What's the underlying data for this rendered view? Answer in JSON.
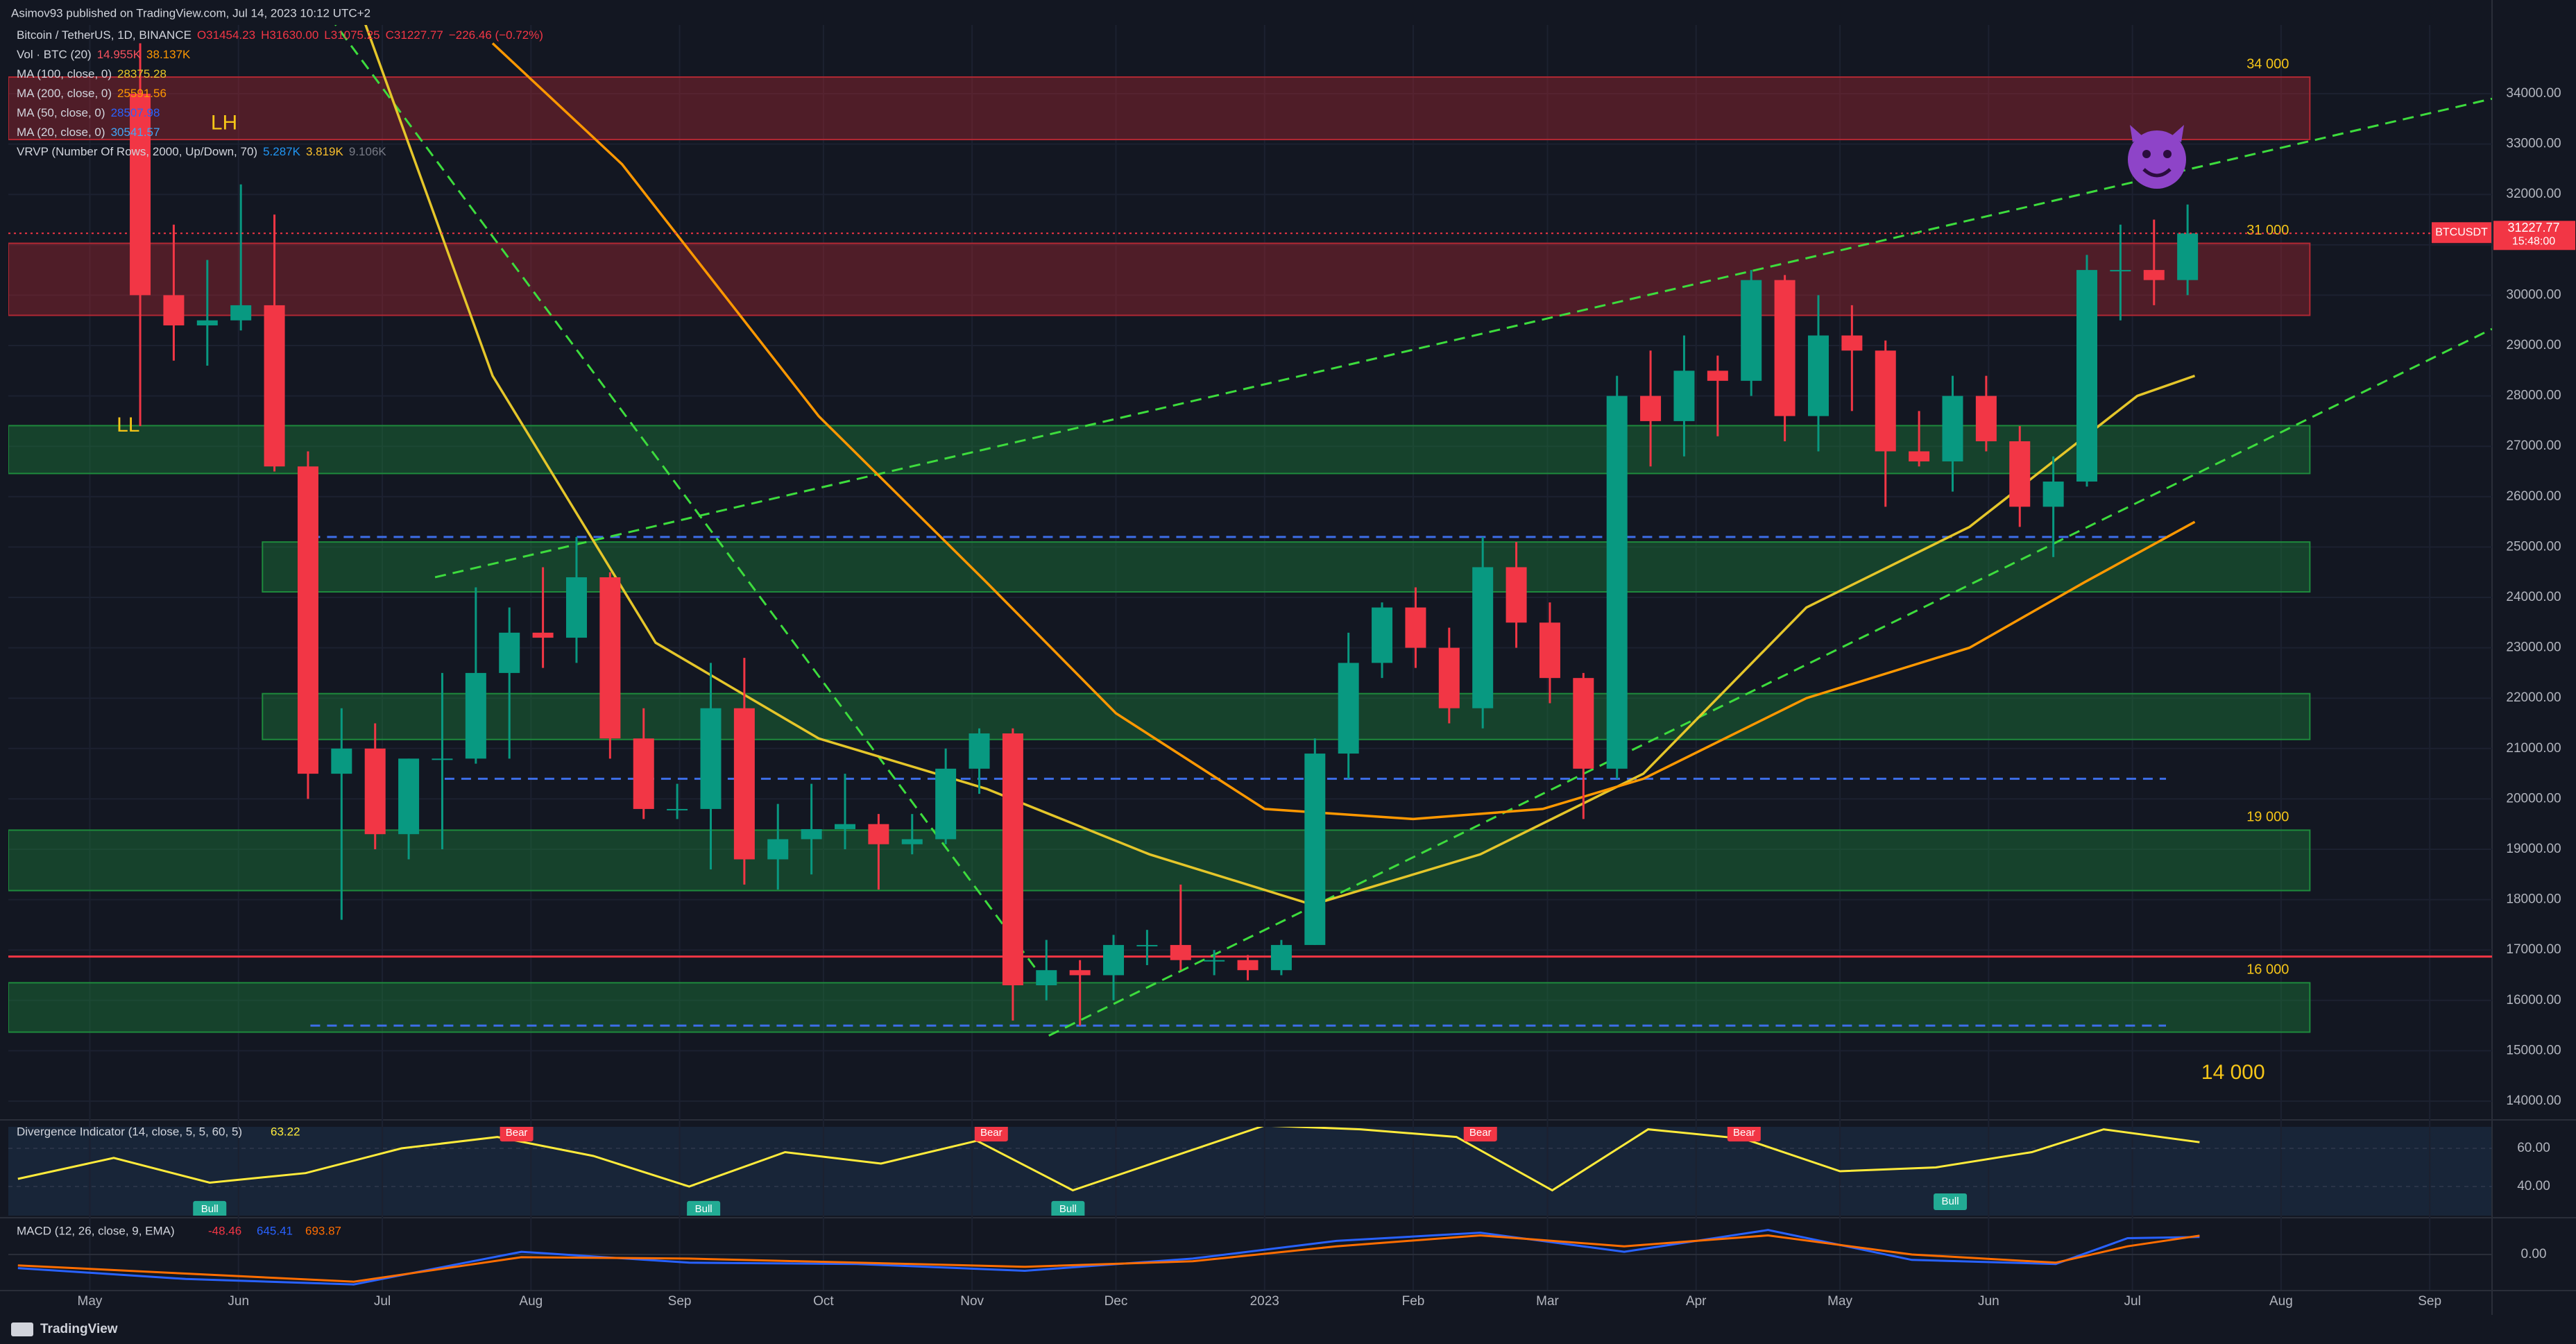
{
  "header": {
    "publisher": "Asimov93 published on TradingView.com, Jul 14, 2023 10:12 UTC+2",
    "symbol": "Bitcoin / TetherUS, 1D, BINANCE",
    "ohlc": [
      "O31454.23",
      "H31630.00",
      "L31075.25",
      "C31227.77",
      "−226.46 (−0.72%)"
    ]
  },
  "footer": {
    "brand": "TradingView"
  },
  "chart_data": [
    {
      "type": "candlestick",
      "up_color": "#089981",
      "down_color": "#f23645",
      "x": [
        7,
        14,
        21,
        28,
        35,
        42,
        49,
        56,
        63,
        70,
        77,
        84,
        91,
        98,
        105,
        112,
        119,
        126,
        133,
        140,
        147,
        154,
        161,
        168,
        175,
        182,
        189,
        196,
        203,
        210,
        217,
        224,
        231,
        238,
        245,
        252,
        259,
        266,
        273,
        280,
        287,
        294,
        301,
        308,
        315,
        322,
        329,
        336,
        343,
        350,
        357,
        364,
        371,
        378,
        385,
        392,
        399,
        406,
        413,
        420,
        427,
        434
      ],
      "open": [
        34000,
        30000,
        29400,
        29500,
        29800,
        26600,
        20500,
        21000,
        19300,
        20800,
        20800,
        22500,
        23300,
        23200,
        24400,
        21200,
        19800,
        19800,
        21800,
        18800,
        19200,
        19400,
        19500,
        19100,
        19200,
        20600,
        21300,
        16300,
        16600,
        16500,
        17100,
        17100,
        16800,
        16800,
        16600,
        17100,
        20900,
        22700,
        23800,
        23000,
        21800,
        24600,
        23500,
        22400,
        20600,
        28000,
        27500,
        28500,
        28300,
        30300,
        27600,
        29200,
        28900,
        26900,
        26700,
        28000,
        27100,
        25800,
        26300,
        30500,
        30500,
        30300
      ],
      "high": [
        35000,
        31400,
        30700,
        32200,
        31600,
        26900,
        21800,
        21500,
        20800,
        22500,
        24200,
        23800,
        24600,
        25200,
        24500,
        21800,
        20300,
        22700,
        22800,
        19900,
        20300,
        20500,
        19700,
        19700,
        21000,
        21400,
        21400,
        17200,
        16800,
        17300,
        17400,
        18300,
        17000,
        16900,
        17200,
        21200,
        23300,
        23900,
        24200,
        23400,
        25200,
        25100,
        23900,
        22500,
        28400,
        28900,
        29200,
        28800,
        30500,
        30400,
        30000,
        29800,
        29100,
        27700,
        28400,
        28400,
        27400,
        26800,
        30800,
        31400,
        31500,
        31800
      ],
      "low": [
        27400,
        28700,
        28600,
        29300,
        26500,
        20000,
        17600,
        19000,
        18800,
        19000,
        20700,
        20800,
        22600,
        22700,
        20800,
        19600,
        19600,
        18600,
        18300,
        18200,
        18500,
        19000,
        18200,
        18900,
        19100,
        20100,
        15600,
        16000,
        15500,
        16000,
        16700,
        16600,
        16500,
        16400,
        16500,
        17100,
        20400,
        22400,
        22600,
        21500,
        21400,
        23000,
        21900,
        19600,
        20400,
        26600,
        26800,
        27200,
        28000,
        27100,
        26900,
        27700,
        25800,
        26600,
        26100,
        26900,
        25400,
        24800,
        26200,
        29500,
        29800,
        30000
      ],
      "close": [
        30000,
        29400,
        29500,
        29800,
        26600,
        20500,
        21000,
        19300,
        20800,
        20800,
        22500,
        23300,
        23200,
        24400,
        21200,
        19800,
        19800,
        21800,
        18800,
        19200,
        19400,
        19500,
        19100,
        19200,
        20600,
        21300,
        16300,
        16600,
        16500,
        17100,
        17100,
        16800,
        16800,
        16600,
        17100,
        20900,
        22700,
        23800,
        23000,
        21800,
        24600,
        23500,
        22400,
        20600,
        28000,
        27500,
        28500,
        28300,
        30300,
        27600,
        29200,
        28900,
        26900,
        26700,
        28000,
        27100,
        25800,
        26300,
        30500,
        30500,
        30300,
        31227.77
      ],
      "xlim": [
        -17,
        501
      ],
      "xticks": [
        {
          "value": 0,
          "label": "May"
        },
        {
          "value": 31,
          "label": "Jun"
        },
        {
          "value": 61,
          "label": "Jul"
        },
        {
          "value": 92,
          "label": "Aug"
        },
        {
          "value": 123,
          "label": "Sep"
        },
        {
          "value": 153,
          "label": "Oct"
        },
        {
          "value": 184,
          "label": "Nov"
        },
        {
          "value": 214,
          "label": "Dec"
        },
        {
          "value": 245,
          "label": "2023"
        },
        {
          "value": 276,
          "label": "Feb"
        },
        {
          "value": 304,
          "label": "Mar"
        },
        {
          "value": 335,
          "label": "Apr"
        },
        {
          "value": 365,
          "label": "May"
        },
        {
          "value": 396,
          "label": "Jun"
        },
        {
          "value": 426,
          "label": "Jul"
        },
        {
          "value": 457,
          "label": "Aug"
        },
        {
          "value": 488,
          "label": "Sep"
        }
      ],
      "ylim": [
        13683,
        35364
      ],
      "yticks": [
        {
          "value": 14000,
          "label": "14000.00"
        },
        {
          "value": 15000,
          "label": "15000.00"
        },
        {
          "value": 16000,
          "label": "16000.00"
        },
        {
          "value": 17000,
          "label": "17000.00"
        },
        {
          "value": 18000,
          "label": "18000.00"
        },
        {
          "value": 19000,
          "label": "19000.00"
        },
        {
          "value": 20000,
          "label": "20000.00"
        },
        {
          "value": 21000,
          "label": "21000.00"
        },
        {
          "value": 22000,
          "label": "22000.00"
        },
        {
          "value": 23000,
          "label": "23000.00"
        },
        {
          "value": 24000,
          "label": "24000.00"
        },
        {
          "value": 25000,
          "label": "25000.00"
        },
        {
          "value": 26000,
          "label": "26000.00"
        },
        {
          "value": 27000,
          "label": "27000.00"
        },
        {
          "value": 28000,
          "label": "28000.00"
        },
        {
          "value": 29000,
          "label": "29000.00"
        },
        {
          "value": 30000,
          "label": "30000.00"
        },
        {
          "value": 31000,
          "label": "31000.00"
        },
        {
          "value": 32000,
          "label": "32000.00"
        },
        {
          "value": 33000,
          "label": "33000.00"
        },
        {
          "value": 34000,
          "label": "34000.00"
        }
      ],
      "grid": true,
      "series": [
        {
          "name": "MA (100, close, 0)",
          "legend_value": "28375.28",
          "color": "#e5c62a",
          "x": [
            57,
            84,
            118,
            152,
            187,
            221,
            255,
            290,
            324,
            358,
            392,
            427,
            439
          ],
          "values": [
            35500,
            28400,
            23100,
            21200,
            20200,
            18900,
            17900,
            18900,
            20500,
            23800,
            25400,
            28000,
            28400
          ]
        },
        {
          "name": "MA (200, close, 0)",
          "legend_value": "25591.56",
          "color": "#ff9800",
          "x": [
            84,
            111,
            152,
            187,
            214,
            245,
            276,
            303,
            324,
            358,
            392,
            416,
            439
          ],
          "values": [
            35000,
            32600,
            27600,
            24300,
            21700,
            19800,
            19600,
            19800,
            20400,
            22000,
            23000,
            24300,
            25500
          ]
        }
      ],
      "studies": [
        {
          "name": "Vol · BTC (20)",
          "values": [
            "14.955K",
            "38.137K"
          ],
          "colors": [
            "#f7525f",
            "#ff9800"
          ]
        },
        {
          "name": "MA (50, close, 0)",
          "values": [
            "28507.98"
          ],
          "colors": [
            "#2962ff"
          ]
        },
        {
          "name": "MA (20, close, 0)",
          "values": [
            "30541.57"
          ],
          "colors": [
            "#42a5f5"
          ]
        },
        {
          "name": "VRVP (Number Of Rows, 2000, Up/Down, 70)",
          "values": [
            "5.287K",
            "3.819K",
            "9.106K"
          ],
          "colors": [
            "#2196f3",
            "#fbc02d",
            "#787b86"
          ]
        }
      ],
      "zones": [
        {
          "low": 33090,
          "high": 34330,
          "x0": -17,
          "x1": 463,
          "color": "#b22833",
          "label": "34 000"
        },
        {
          "low": 29600,
          "high": 31030,
          "x0": -17,
          "x1": 463,
          "color": "#b22833",
          "label": "31 000"
        },
        {
          "low": 26460,
          "high": 27410,
          "x0": -17,
          "x1": 463,
          "color": "#1e8a3c"
        },
        {
          "low": 24110,
          "high": 25100,
          "x0": 36,
          "x1": 463,
          "color": "#1e8a3c"
        },
        {
          "low": 21180,
          "high": 22090,
          "x0": 36,
          "x1": 463,
          "color": "#1e8a3c"
        },
        {
          "low": 18180,
          "high": 19380,
          "x0": -17,
          "x1": 463,
          "color": "#1e8a3c",
          "label": "19 000"
        },
        {
          "low": 15370,
          "high": 16350,
          "x0": -17,
          "x1": 463,
          "color": "#1e8a3c",
          "label": "16 000"
        }
      ],
      "hlines": [
        {
          "value": 16870,
          "x0": -17,
          "x1": 501,
          "color": "#f23645",
          "dash": false
        },
        {
          "value": 25200,
          "x0": 46,
          "x1": 433,
          "color": "#3d6ee8",
          "dash": true
        },
        {
          "value": 20400,
          "x0": 74,
          "x1": 433,
          "color": "#3d6ee8",
          "dash": true
        },
        {
          "value": 15500,
          "x0": 46,
          "x1": 433,
          "color": "#3d6ee8",
          "dash": true
        }
      ],
      "trendlines": [
        {
          "x": [
            72,
            501
          ],
          "y": [
            24400,
            33900
          ],
          "color": "#3ddc3d"
        },
        {
          "x": [
            50,
            200
          ],
          "y": [
            35530,
            16280
          ],
          "color": "#3ddc3d"
        },
        {
          "x": [
            200,
            501
          ],
          "y": [
            15300,
            29330
          ],
          "color": "#3ddc3d"
        }
      ],
      "annotations": [
        {
          "text": "LH",
          "x": 28,
          "y": 33400,
          "color": "#f5c518"
        },
        {
          "text": "LL",
          "x": 8,
          "y": 27400,
          "color": "#f5c518"
        },
        {
          "text": "14 000",
          "x": 447,
          "y": 14550,
          "color": "#f5c518"
        }
      ],
      "last": {
        "symbol": "BTCUSDT",
        "price": 31227.77,
        "countdown": "15:48:00",
        "color": "#f23645"
      }
    },
    {
      "type": "line",
      "title": "Divergence Indicator (14, close, 5, 5, 60, 5)",
      "color": "#ffeb3b",
      "x": [
        -15,
        5,
        25,
        45,
        65,
        85,
        105,
        125,
        145,
        165,
        185,
        205,
        225,
        245,
        265,
        285,
        305,
        325,
        345,
        365,
        385,
        405,
        420,
        440
      ],
      "values": [
        44,
        55,
        42,
        47,
        60,
        66,
        56,
        40,
        58,
        52,
        64,
        38,
        55,
        72,
        70,
        66,
        38,
        70,
        65,
        48,
        50,
        58,
        70,
        63.22
      ],
      "ylim": [
        24.7,
        71.3
      ],
      "yticks": [
        {
          "value": 60,
          "label": "60.00"
        },
        {
          "value": 40,
          "label": "40.00"
        }
      ],
      "annotations": [
        {
          "text": "Bear",
          "x": 89,
          "y": 68,
          "color": "#f23645"
        },
        {
          "text": "Bear",
          "x": 188,
          "y": 68,
          "color": "#f23645"
        },
        {
          "text": "Bear",
          "x": 290,
          "y": 68,
          "color": "#f23645"
        },
        {
          "text": "Bear",
          "x": 345,
          "y": 68,
          "color": "#f23645"
        },
        {
          "text": "Bull",
          "x": 25,
          "y": 28,
          "color": "#22ab94"
        },
        {
          "text": "Bull",
          "x": 128,
          "y": 28,
          "color": "#22ab94"
        },
        {
          "text": "Bull",
          "x": 204,
          "y": 28,
          "color": "#22ab94"
        },
        {
          "text": "Bull",
          "x": 388,
          "y": 32,
          "color": "#22ab94"
        }
      ]
    },
    {
      "type": "line",
      "title": "MACD (12, 26, close, 9, EMA)",
      "histogram_last": -48.46,
      "histogram_color": "#f23645",
      "x": [
        -15,
        20,
        55,
        90,
        125,
        160,
        195,
        230,
        260,
        290,
        320,
        350,
        380,
        410,
        425,
        440
      ],
      "series": [
        {
          "color": "#2962ff",
          "values": [
            -500,
            -900,
            -1100,
            100,
            -300,
            -350,
            -600,
            -150,
            500,
            800,
            100,
            900,
            -200,
            -350,
            600,
            645.41
          ]
        },
        {
          "color": "#ff6d00",
          "values": [
            -400,
            -700,
            -1000,
            -100,
            -150,
            -300,
            -450,
            -250,
            300,
            700,
            300,
            700,
            0,
            -300,
            300,
            693.87
          ]
        }
      ],
      "ylim": [
        -1300,
        1300
      ],
      "yticks": [
        {
          "value": 0,
          "label": "0.00"
        }
      ]
    }
  ]
}
